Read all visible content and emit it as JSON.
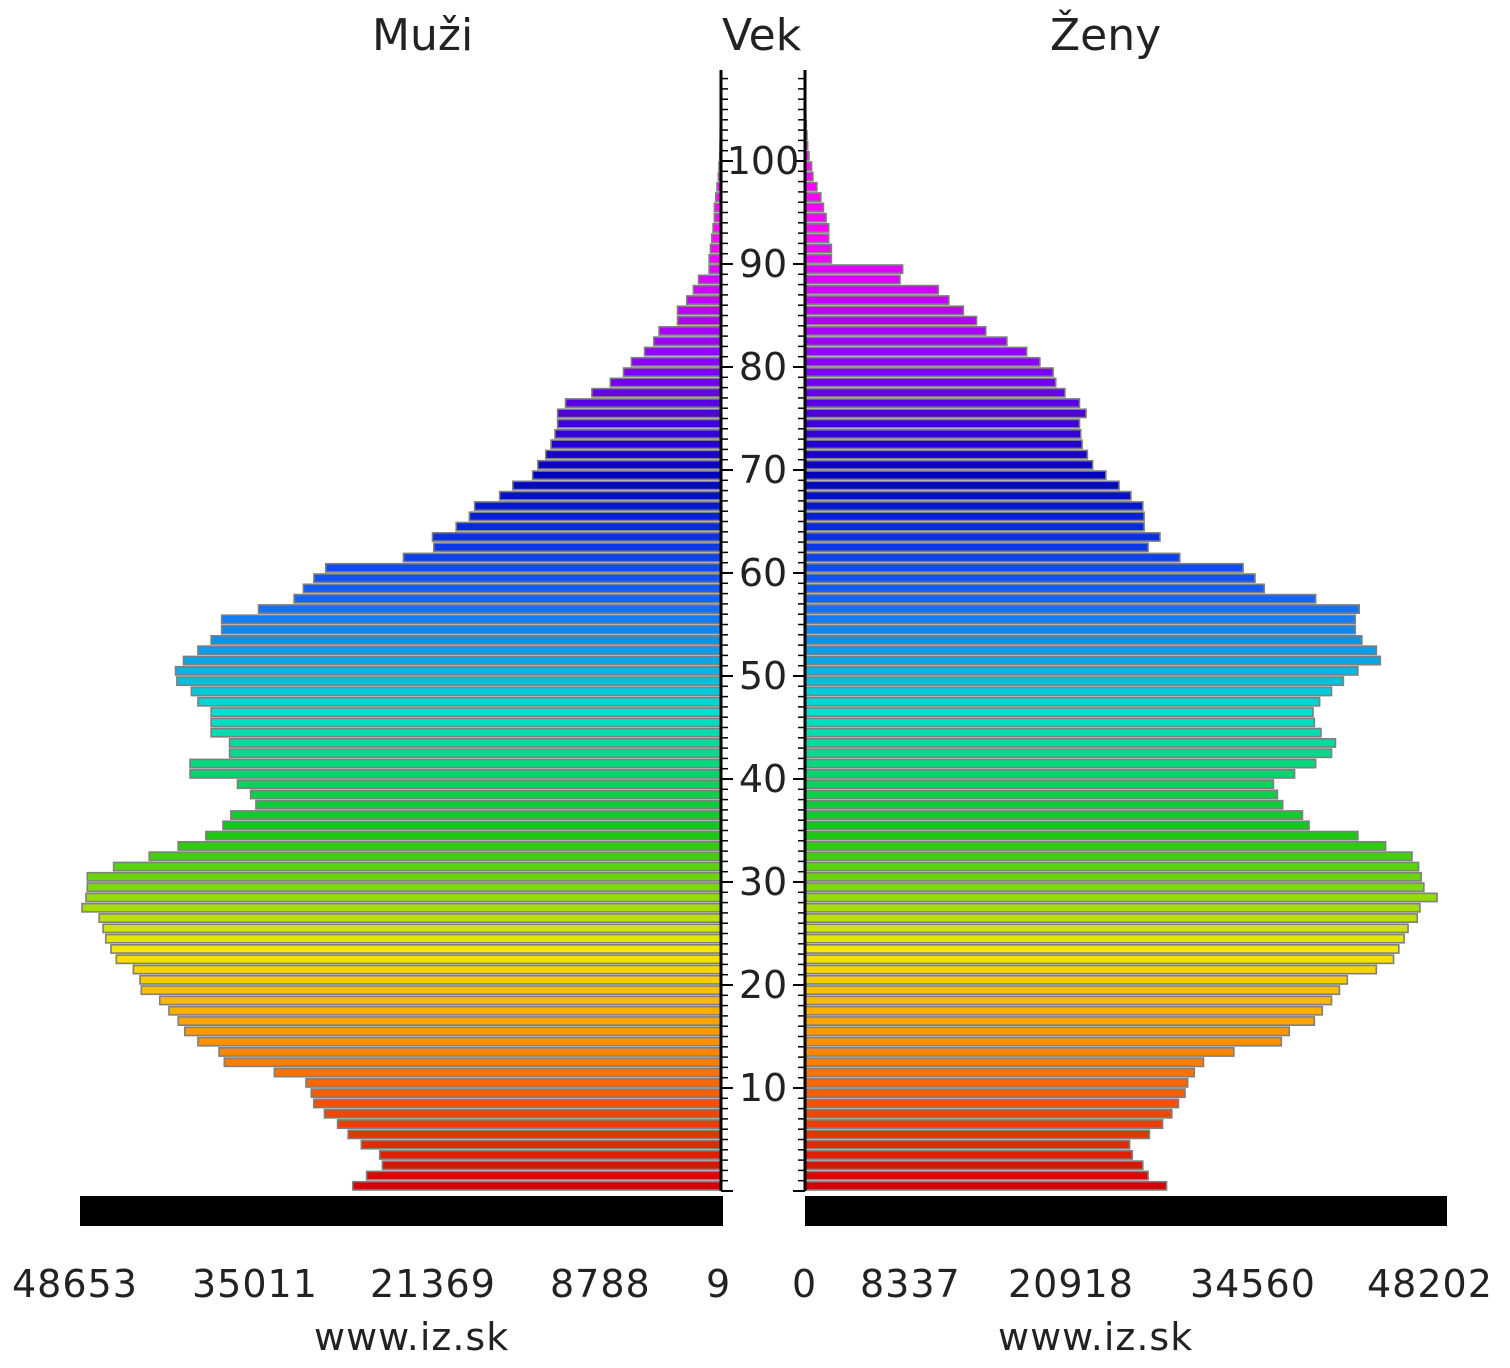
{
  "chart_data": {
    "type": "bar",
    "orientation": "horizontal-population-pyramid",
    "left_header": "Muži",
    "center_header": "Vek",
    "right_header": "Ženy",
    "age_ticks": [
      "10",
      "20",
      "30",
      "40",
      "50",
      "60",
      "70",
      "80",
      "90",
      "100"
    ],
    "male_axis_ticks": [
      "48653",
      "35011",
      "21369",
      "8788",
      "9"
    ],
    "female_axis_ticks": [
      "0",
      "8337",
      "20918",
      "34560",
      "48202"
    ],
    "watermark_left": "www.iz.sk",
    "watermark_right": "www.iz.sk",
    "axis_max": 48653,
    "ages": [
      0,
      1,
      2,
      3,
      4,
      5,
      6,
      7,
      8,
      9,
      10,
      11,
      12,
      13,
      14,
      15,
      16,
      17,
      18,
      19,
      20,
      21,
      22,
      23,
      24,
      25,
      26,
      27,
      28,
      29,
      30,
      31,
      32,
      33,
      34,
      35,
      36,
      37,
      38,
      39,
      40,
      41,
      42,
      43,
      44,
      45,
      46,
      47,
      48,
      49,
      50,
      51,
      52,
      53,
      54,
      55,
      56,
      57,
      58,
      59,
      60,
      61,
      62,
      63,
      64,
      65,
      66,
      67,
      68,
      69,
      70,
      71,
      72,
      73,
      74,
      75,
      76,
      77,
      78,
      79,
      80,
      81,
      82,
      83,
      84,
      85,
      86,
      87,
      88,
      89,
      90,
      91,
      92,
      93,
      94,
      95,
      96,
      97,
      98,
      99,
      100,
      101,
      102,
      103,
      104,
      105,
      106,
      107
    ],
    "series": [
      {
        "name": "Muži",
        "values": [
          27950,
          26900,
          25700,
          25900,
          27300,
          28300,
          29100,
          30100,
          30900,
          31100,
          31500,
          33900,
          37700,
          38100,
          39700,
          40700,
          41200,
          41900,
          42600,
          44000,
          44100,
          44600,
          45900,
          46300,
          46700,
          46900,
          47200,
          48500,
          48200,
          48100,
          48100,
          46100,
          43400,
          41200,
          39100,
          37800,
          37200,
          35300,
          35700,
          36700,
          40300,
          40300,
          37300,
          37300,
          38700,
          38700,
          38700,
          39700,
          40200,
          41300,
          41400,
          40800,
          39700,
          38700,
          37900,
          37900,
          35100,
          32400,
          31700,
          30900,
          30000,
          24100,
          21800,
          21900,
          20100,
          19100,
          18700,
          16800,
          15800,
          14300,
          13900,
          13300,
          12900,
          12600,
          12400,
          12400,
          11800,
          9800,
          8400,
          7400,
          6800,
          5800,
          5100,
          4700,
          3300,
          3300,
          2600,
          2100,
          1700,
          900,
          900,
          800,
          700,
          600,
          500,
          500,
          400,
          300,
          200,
          150,
          100,
          80,
          60,
          40,
          30,
          20,
          10,
          5
        ]
      },
      {
        "name": "Ženy",
        "values": [
          27400,
          26000,
          25600,
          24800,
          24600,
          26100,
          27100,
          27800,
          28300,
          28800,
          29000,
          29500,
          30200,
          32500,
          36100,
          36700,
          38600,
          39200,
          39900,
          40500,
          41100,
          43300,
          44600,
          45000,
          45400,
          45700,
          46400,
          46600,
          47900,
          46900,
          46700,
          46500,
          46000,
          44000,
          41900,
          38200,
          37700,
          36200,
          35800,
          35500,
          37100,
          38700,
          39900,
          40200,
          39100,
          38600,
          38500,
          39000,
          39900,
          40800,
          41900,
          43600,
          43300,
          42200,
          41700,
          41700,
          42000,
          38700,
          34800,
          34100,
          33200,
          28400,
          26000,
          26900,
          25700,
          25700,
          25600,
          24700,
          23800,
          22800,
          21800,
          21400,
          21000,
          20900,
          20800,
          21300,
          20800,
          19700,
          19000,
          18800,
          17800,
          16800,
          15300,
          13700,
          13000,
          12000,
          10900,
          10100,
          7200,
          7400,
          2000,
          2000,
          1800,
          1800,
          1600,
          1400,
          1200,
          900,
          600,
          500,
          300,
          200,
          150,
          100,
          60,
          40,
          20,
          10
        ]
      }
    ],
    "colors": {
      "bar_outline": "#7f7f7f",
      "axis_black": "#000000",
      "age_scale_stops": [
        "#d20000",
        "#ff7700",
        "#f5e800",
        "#12c812",
        "#00e0d0",
        "#1460ff",
        "#0000c0",
        "#9000ff",
        "#ff00ff"
      ]
    }
  }
}
